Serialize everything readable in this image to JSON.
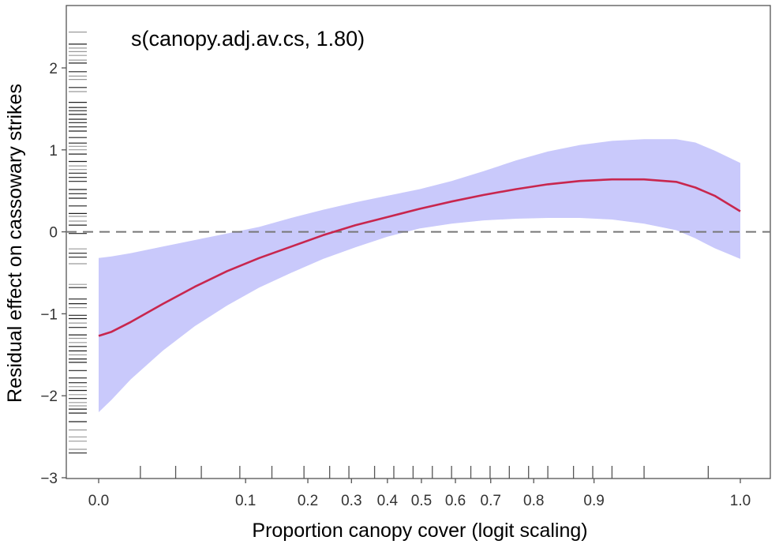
{
  "chart_data": {
    "type": "line",
    "title": "s(canopy.adj.av.cs, 1.80)",
    "xlabel": "Proportion canopy cover (logit scaling)",
    "ylabel": "Residual effect on cassowary strikes",
    "x_scale": "logit",
    "xlim": [
      0.0,
      1.0
    ],
    "ylim": [
      -3,
      2.5
    ],
    "x_ticks": [
      "0.0",
      "0.1",
      "0.2",
      "0.3",
      "0.4",
      "0.5",
      "0.6",
      "0.7",
      "0.8",
      "0.9",
      "1.0"
    ],
    "y_ticks": [
      "−3",
      "−2",
      "−1",
      "0",
      "1",
      "2"
    ],
    "y_tick_values": [
      -3,
      -2,
      -1,
      0,
      1,
      2
    ],
    "reference_line": {
      "y": 0,
      "style": "dashed",
      "color": "#777777"
    },
    "series": [
      {
        "color": "#c8264e",
        "x": [
          0.0,
          0.02,
          0.05,
          0.1,
          0.15,
          0.2,
          0.25,
          0.3,
          0.35,
          0.4,
          0.45,
          0.5,
          0.55,
          0.6,
          0.65,
          0.7,
          0.75,
          0.8,
          0.85,
          0.9,
          0.93,
          0.96,
          1.0
        ],
        "y": [
          -1.27,
          -1.22,
          -1.1,
          -0.88,
          -0.67,
          -0.48,
          -0.32,
          -0.18,
          -0.04,
          0.08,
          0.18,
          0.28,
          0.37,
          0.45,
          0.52,
          0.58,
          0.62,
          0.64,
          0.64,
          0.61,
          0.54,
          0.44,
          0.25
        ],
        "ci_lower": [
          -2.2,
          -2.05,
          -1.8,
          -1.45,
          -1.15,
          -0.9,
          -0.68,
          -0.5,
          -0.33,
          -0.19,
          -0.06,
          0.04,
          0.1,
          0.14,
          0.16,
          0.17,
          0.17,
          0.15,
          0.1,
          0.02,
          -0.08,
          -0.2,
          -0.33
        ],
        "ci_upper": [
          -0.32,
          -0.3,
          -0.26,
          -0.18,
          -0.1,
          -0.02,
          0.06,
          0.17,
          0.27,
          0.36,
          0.44,
          0.52,
          0.62,
          0.74,
          0.87,
          0.98,
          1.06,
          1.11,
          1.13,
          1.13,
          1.09,
          0.99,
          0.84
        ]
      }
    ],
    "ci_fill_color": "#c9c9fb",
    "x_rug": [
      0.065,
      0.12,
      0.16,
      0.22,
      0.27,
      0.32,
      0.36,
      0.39,
      0.43,
      0.46,
      0.49,
      0.52,
      0.55,
      0.58,
      0.61,
      0.64,
      0.67,
      0.7,
      0.74,
      0.77,
      0.8,
      0.85,
      0.95
    ],
    "y_rug_density": "dense black rug marks along the y-axis between about -2.7 and 2.4",
    "grid": false,
    "legend": "none"
  }
}
